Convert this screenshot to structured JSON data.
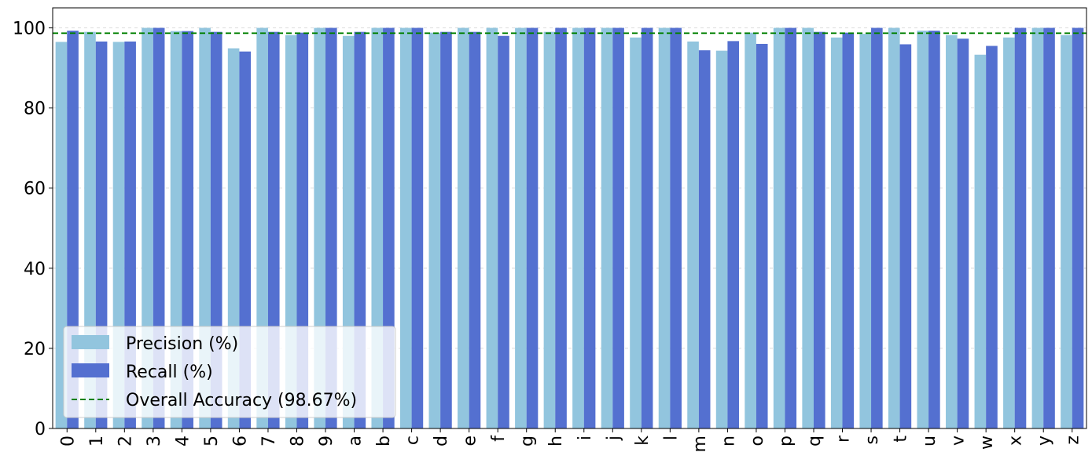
{
  "chart_data": {
    "type": "bar",
    "categories": [
      "0",
      "1",
      "2",
      "3",
      "4",
      "5",
      "6",
      "7",
      "8",
      "9",
      "a",
      "b",
      "c",
      "d",
      "e",
      "f",
      "g",
      "h",
      "i",
      "j",
      "k",
      "l",
      "m",
      "n",
      "o",
      "p",
      "q",
      "r",
      "s",
      "t",
      "u",
      "v",
      "w",
      "x",
      "y",
      "z"
    ],
    "series": [
      {
        "name": "Precision (%)",
        "color": "#92c5de",
        "values": [
          96.5,
          99.0,
          96.5,
          100,
          99.2,
          100,
          94.9,
          100,
          98.2,
          100,
          98.0,
          100,
          100,
          98.8,
          100,
          100,
          100,
          99.0,
          100,
          100,
          97.6,
          100,
          96.6,
          94.3,
          98.8,
          100,
          100,
          97.6,
          98.5,
          100,
          99.3,
          98.2,
          93.3,
          97.6,
          100,
          98.2
        ]
      },
      {
        "name": "Recall (%)",
        "color": "#5470d0",
        "values": [
          99.3,
          96.6,
          96.6,
          100,
          99.2,
          99.0,
          94.1,
          99.0,
          98.8,
          100,
          99.0,
          100,
          100,
          99.0,
          99.0,
          98.0,
          100,
          100,
          100,
          100,
          100,
          100,
          94.4,
          96.7,
          96.0,
          100,
          99.0,
          98.8,
          100,
          95.9,
          99.3,
          97.3,
          95.5,
          100,
          100,
          100
        ]
      }
    ],
    "reference_line": {
      "label": "Overall Accuracy (98.67%)",
      "value": 98.67,
      "color": "#008000",
      "style": "dashed"
    },
    "ylim": [
      0,
      105
    ],
    "yticks": [
      0,
      20,
      40,
      60,
      80,
      100
    ],
    "xlabel": "",
    "ylabel": "",
    "title": "",
    "grid": "y-dashed",
    "legend_position": "lower-left"
  },
  "legend": {
    "precision_label": "Precision (%)",
    "recall_label": "Recall (%)",
    "accuracy_label": "Overall Accuracy (98.67%)"
  }
}
